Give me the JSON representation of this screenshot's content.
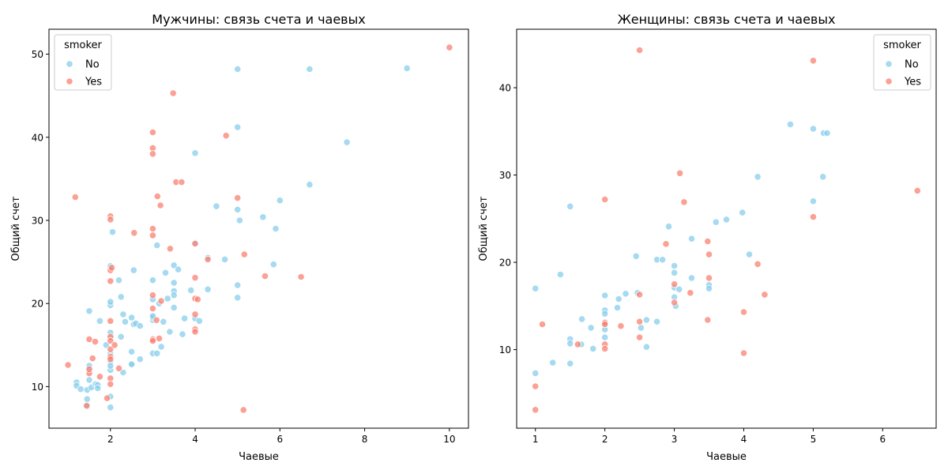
{
  "legend_title": "smoker",
  "colors": {
    "no": "#87ceeb",
    "yes": "#fa8072"
  },
  "chart_data": [
    {
      "type": "scatter",
      "title": "Мужчины: связь счета и чаевых",
      "xlabel": "Чаевые",
      "ylabel": "Общий счет",
      "xlim": [
        0.55,
        10.45
      ],
      "ylim": [
        5.0,
        53.0
      ],
      "xticks": [
        2,
        4,
        6,
        8,
        10
      ],
      "yticks": [
        10,
        20,
        30,
        40,
        50
      ],
      "grid": false,
      "legend_position": "top-left",
      "series": [
        {
          "name": "No",
          "points": [
            [
              1.2,
              10.5
            ],
            [
              1.2,
              10.1
            ],
            [
              1.3,
              9.7
            ],
            [
              1.45,
              9.6
            ],
            [
              1.45,
              7.6
            ],
            [
              1.45,
              8.5
            ],
            [
              1.5,
              10.8
            ],
            [
              1.5,
              12.0
            ],
            [
              1.5,
              12.5
            ],
            [
              1.5,
              19.1
            ],
            [
              1.55,
              9.9
            ],
            [
              1.65,
              10.3
            ],
            [
              1.7,
              10.2
            ],
            [
              1.7,
              9.8
            ],
            [
              1.75,
              17.9
            ],
            [
              1.9,
              15.0
            ],
            [
              2.0,
              13.0
            ],
            [
              2.0,
              12.0
            ],
            [
              2.0,
              12.5
            ],
            [
              2.0,
              16.0
            ],
            [
              2.0,
              16.5
            ],
            [
              2.0,
              19.8
            ],
            [
              2.0,
              20.2
            ],
            [
              2.0,
              24.5
            ],
            [
              2.0,
              8.8
            ],
            [
              2.0,
              7.5
            ],
            [
              2.0,
              14.0
            ],
            [
              2.05,
              28.6
            ],
            [
              2.2,
              22.8
            ],
            [
              2.25,
              16.0
            ],
            [
              2.25,
              20.8
            ],
            [
              2.3,
              18.7
            ],
            [
              2.3,
              11.7
            ],
            [
              2.35,
              17.8
            ],
            [
              2.5,
              18.3
            ],
            [
              2.5,
              12.6
            ],
            [
              2.5,
              12.7
            ],
            [
              2.5,
              14.2
            ],
            [
              2.55,
              17.5
            ],
            [
              2.55,
              24.0
            ],
            [
              2.6,
              17.6
            ],
            [
              2.7,
              17.3
            ],
            [
              2.7,
              13.3
            ],
            [
              3.0,
              22.8
            ],
            [
              3.0,
              20.5
            ],
            [
              3.0,
              18.0
            ],
            [
              3.0,
              18.3
            ],
            [
              3.0,
              18.5
            ],
            [
              3.0,
              14.0
            ],
            [
              3.1,
              14.0
            ],
            [
              3.1,
              27.0
            ],
            [
              3.15,
              20.0
            ],
            [
              3.2,
              14.8
            ],
            [
              3.25,
              17.8
            ],
            [
              3.3,
              23.7
            ],
            [
              3.35,
              20.6
            ],
            [
              3.4,
              16.6
            ],
            [
              3.5,
              24.6
            ],
            [
              3.5,
              22.5
            ],
            [
              3.5,
              21.5
            ],
            [
              3.5,
              21.0
            ],
            [
              3.5,
              19.5
            ],
            [
              3.6,
              24.1
            ],
            [
              3.7,
              16.3
            ],
            [
              3.75,
              18.2
            ],
            [
              3.9,
              21.6
            ],
            [
              4.0,
              38.1
            ],
            [
              4.0,
              27.3
            ],
            [
              4.0,
              18.2
            ],
            [
              4.1,
              17.9
            ],
            [
              4.3,
              25.5
            ],
            [
              4.3,
              21.7
            ],
            [
              4.5,
              31.7
            ],
            [
              4.7,
              25.3
            ],
            [
              5.0,
              48.2
            ],
            [
              5.0,
              41.2
            ],
            [
              5.0,
              31.3
            ],
            [
              5.0,
              22.2
            ],
            [
              5.0,
              20.7
            ],
            [
              5.05,
              30.0
            ],
            [
              5.6,
              30.4
            ],
            [
              5.85,
              24.7
            ],
            [
              5.9,
              29.0
            ],
            [
              6.0,
              32.4
            ],
            [
              6.7,
              48.2
            ],
            [
              6.7,
              34.3
            ],
            [
              7.58,
              39.4
            ],
            [
              9.0,
              48.3
            ]
          ]
        },
        {
          "name": "Yes",
          "points": [
            [
              1.0,
              12.6
            ],
            [
              1.17,
              32.8
            ],
            [
              1.44,
              7.7
            ],
            [
              1.5,
              11.6
            ],
            [
              1.5,
              12.1
            ],
            [
              1.5,
              15.7
            ],
            [
              1.58,
              13.4
            ],
            [
              1.64,
              15.4
            ],
            [
              1.75,
              11.2
            ],
            [
              1.92,
              8.6
            ],
            [
              2.0,
              30.5
            ],
            [
              2.0,
              30.1
            ],
            [
              2.0,
              24.0
            ],
            [
              2.0,
              22.7
            ],
            [
              2.0,
              17.9
            ],
            [
              2.0,
              16.0
            ],
            [
              2.0,
              15.5
            ],
            [
              2.0,
              14.5
            ],
            [
              2.0,
              13.6
            ],
            [
              2.0,
              13.3
            ],
            [
              2.0,
              11.0
            ],
            [
              2.0,
              10.3
            ],
            [
              2.03,
              24.3
            ],
            [
              2.1,
              15.0
            ],
            [
              2.2,
              12.2
            ],
            [
              2.56,
              28.5
            ],
            [
              3.0,
              40.6
            ],
            [
              3.0,
              38.7
            ],
            [
              3.0,
              38.0
            ],
            [
              3.0,
              29.0
            ],
            [
              3.0,
              28.2
            ],
            [
              3.0,
              21.0
            ],
            [
              3.0,
              19.4
            ],
            [
              3.0,
              15.7
            ],
            [
              3.0,
              15.5
            ],
            [
              3.09,
              18.0
            ],
            [
              3.11,
              32.9
            ],
            [
              3.15,
              15.8
            ],
            [
              3.18,
              31.8
            ],
            [
              3.2,
              20.3
            ],
            [
              3.41,
              26.6
            ],
            [
              3.48,
              45.3
            ],
            [
              3.55,
              34.6
            ],
            [
              3.68,
              34.6
            ],
            [
              4.0,
              27.2
            ],
            [
              4.0,
              23.1
            ],
            [
              4.0,
              20.6
            ],
            [
              4.0,
              18.7
            ],
            [
              4.0,
              16.9
            ],
            [
              4.0,
              16.6
            ],
            [
              4.06,
              20.5
            ],
            [
              4.3,
              25.3
            ],
            [
              4.73,
              40.2
            ],
            [
              5.0,
              32.7
            ],
            [
              5.14,
              7.2
            ],
            [
              5.16,
              25.9
            ],
            [
              5.65,
              23.3
            ],
            [
              6.5,
              23.2
            ],
            [
              10.0,
              50.8
            ]
          ]
        }
      ]
    },
    {
      "type": "scatter",
      "title": "Женщины: связь счета и чаевых",
      "xlabel": "Чаевые",
      "ylabel": "Общий счет",
      "xlim": [
        0.73,
        6.77
      ],
      "ylim": [
        1.0,
        46.7
      ],
      "xticks": [
        1,
        2,
        3,
        4,
        5,
        6
      ],
      "yticks": [
        10,
        20,
        30,
        40
      ],
      "grid": false,
      "legend_position": "top-right",
      "series": [
        {
          "name": "No",
          "points": [
            [
              1.0,
              17.0
            ],
            [
              1.0,
              7.3
            ],
            [
              1.25,
              8.5
            ],
            [
              1.36,
              18.6
            ],
            [
              1.5,
              26.4
            ],
            [
              1.5,
              11.2
            ],
            [
              1.5,
              10.7
            ],
            [
              1.5,
              8.4
            ],
            [
              1.66,
              10.6
            ],
            [
              1.67,
              13.5
            ],
            [
              1.8,
              12.5
            ],
            [
              1.83,
              10.1
            ],
            [
              2.0,
              16.2
            ],
            [
              2.0,
              14.5
            ],
            [
              2.0,
              14.1
            ],
            [
              2.0,
              13.0
            ],
            [
              2.0,
              12.3
            ],
            [
              2.0,
              11.4
            ],
            [
              2.18,
              14.8
            ],
            [
              2.2,
              15.8
            ],
            [
              2.3,
              16.4
            ],
            [
              2.45,
              20.7
            ],
            [
              2.47,
              16.5
            ],
            [
              2.52,
              12.5
            ],
            [
              2.6,
              13.4
            ],
            [
              2.6,
              10.3
            ],
            [
              2.75,
              20.3
            ],
            [
              2.75,
              13.2
            ],
            [
              2.83,
              20.3
            ],
            [
              2.92,
              24.1
            ],
            [
              3.0,
              19.6
            ],
            [
              3.0,
              18.8
            ],
            [
              3.0,
              17.1
            ],
            [
              3.0,
              16.0
            ],
            [
              3.02,
              15.0
            ],
            [
              3.07,
              16.9
            ],
            [
              3.25,
              22.7
            ],
            [
              3.25,
              18.2
            ],
            [
              3.5,
              17.4
            ],
            [
              3.5,
              17.0
            ],
            [
              3.6,
              24.6
            ],
            [
              3.75,
              24.9
            ],
            [
              3.98,
              25.7
            ],
            [
              4.08,
              20.9
            ],
            [
              4.2,
              29.8
            ],
            [
              4.67,
              35.8
            ],
            [
              5.0,
              35.3
            ],
            [
              5.0,
              27.0
            ],
            [
              5.14,
              29.8
            ],
            [
              5.15,
              34.8
            ],
            [
              5.2,
              34.8
            ]
          ]
        },
        {
          "name": "Yes",
          "points": [
            [
              1.0,
              5.8
            ],
            [
              1.0,
              3.1
            ],
            [
              1.1,
              12.9
            ],
            [
              1.61,
              10.6
            ],
            [
              2.0,
              27.2
            ],
            [
              2.0,
              13.1
            ],
            [
              2.0,
              12.9
            ],
            [
              2.0,
              10.6
            ],
            [
              2.0,
              10.1
            ],
            [
              2.23,
              12.7
            ],
            [
              2.5,
              44.3
            ],
            [
              2.5,
              16.3
            ],
            [
              2.5,
              13.2
            ],
            [
              2.5,
              11.4
            ],
            [
              2.88,
              22.1
            ],
            [
              3.0,
              17.5
            ],
            [
              3.0,
              15.4
            ],
            [
              3.08,
              30.2
            ],
            [
              3.14,
              26.9
            ],
            [
              3.23,
              16.5
            ],
            [
              3.48,
              22.4
            ],
            [
              3.5,
              20.9
            ],
            [
              3.5,
              18.2
            ],
            [
              3.48,
              13.4
            ],
            [
              4.0,
              14.3
            ],
            [
              4.0,
              9.6
            ],
            [
              4.2,
              19.8
            ],
            [
              4.3,
              16.3
            ],
            [
              5.0,
              43.1
            ],
            [
              5.0,
              25.2
            ],
            [
              6.5,
              28.2
            ]
          ]
        }
      ]
    }
  ]
}
